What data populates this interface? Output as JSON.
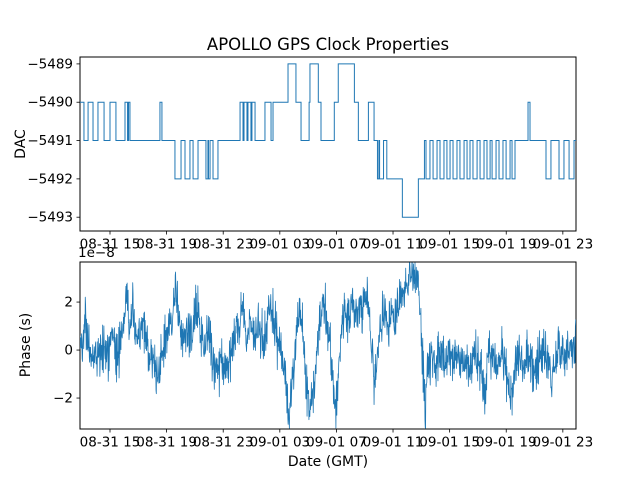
{
  "figure": {
    "title": "APOLLO GPS Clock Properties",
    "xlabel": "Date (GMT)",
    "background": "#ffffff",
    "line_color": "#1f77b4",
    "spine_color": "#000000"
  },
  "chart_data": [
    {
      "type": "step",
      "name": "dac-subplot",
      "title": "APOLLO GPS Clock Properties",
      "ylabel": "DAC",
      "grid": false,
      "legend": "none",
      "xlim_hours": [
        12.88,
        47.93
      ],
      "ylim": [
        -5493.36,
        -5488.82
      ],
      "yticks": [
        -5489,
        -5490,
        -5491,
        -5492,
        -5493
      ],
      "ytick_labels": [
        "−5489",
        "−5490",
        "−5491",
        "−5492",
        "−5493"
      ],
      "xtick_hours": [
        15,
        19,
        23,
        27,
        31,
        35,
        39,
        43,
        47
      ],
      "xtick_labels": [
        "08-31 15",
        "08-31 19",
        "08-31 23",
        "09-01 03",
        "09-01 07",
        "09-01 11",
        "09-01 15",
        "09-01 19",
        "09-01 23"
      ],
      "steps": [
        [
          12.88,
          -5490
        ],
        [
          13.16,
          -5491
        ],
        [
          13.45,
          -5490
        ],
        [
          13.8,
          -5491
        ],
        [
          14.15,
          -5490
        ],
        [
          14.58,
          -5491
        ],
        [
          15.0,
          -5490
        ],
        [
          15.42,
          -5491
        ],
        [
          16.06,
          -5490
        ],
        [
          16.24,
          -5491
        ],
        [
          16.31,
          -5490
        ],
        [
          16.41,
          -5491
        ],
        [
          18.53,
          -5490
        ],
        [
          18.67,
          -5491
        ],
        [
          19.59,
          -5492
        ],
        [
          20.02,
          -5491
        ],
        [
          20.3,
          -5492
        ],
        [
          20.65,
          -5491
        ],
        [
          20.87,
          -5492
        ],
        [
          21.22,
          -5491
        ],
        [
          21.78,
          -5492
        ],
        [
          21.92,
          -5491
        ],
        [
          21.96,
          -5492
        ],
        [
          22.07,
          -5491
        ],
        [
          22.28,
          -5492
        ],
        [
          22.63,
          -5491
        ],
        [
          24.19,
          -5490
        ],
        [
          24.4,
          -5491
        ],
        [
          24.47,
          -5490
        ],
        [
          24.68,
          -5491
        ],
        [
          24.75,
          -5490
        ],
        [
          24.96,
          -5491
        ],
        [
          25.03,
          -5490
        ],
        [
          25.25,
          -5491
        ],
        [
          25.95,
          -5490
        ],
        [
          26.38,
          -5491
        ],
        [
          26.52,
          -5490
        ],
        [
          27.58,
          -5489
        ],
        [
          28.14,
          -5490
        ],
        [
          28.5,
          -5491
        ],
        [
          29.07,
          -5490
        ],
        [
          29.13,
          -5489
        ],
        [
          29.72,
          -5490
        ],
        [
          29.91,
          -5491
        ],
        [
          30.85,
          -5490
        ],
        [
          31.13,
          -5489
        ],
        [
          32.27,
          -5490
        ],
        [
          32.55,
          -5491
        ],
        [
          33.26,
          -5490
        ],
        [
          33.66,
          -5491
        ],
        [
          33.9,
          -5492
        ],
        [
          34.0,
          -5491
        ],
        [
          34.05,
          -5492
        ],
        [
          34.33,
          -5491
        ],
        [
          34.56,
          -5492
        ],
        [
          35.66,
          -5493
        ],
        [
          36.79,
          -5492
        ],
        [
          37.22,
          -5491
        ],
        [
          37.33,
          -5492
        ],
        [
          37.61,
          -5491
        ],
        [
          37.83,
          -5492
        ],
        [
          38.11,
          -5491
        ],
        [
          38.32,
          -5492
        ],
        [
          38.6,
          -5491
        ],
        [
          38.81,
          -5492
        ],
        [
          39.03,
          -5491
        ],
        [
          39.24,
          -5492
        ],
        [
          39.52,
          -5491
        ],
        [
          39.73,
          -5492
        ],
        [
          40.02,
          -5491
        ],
        [
          40.23,
          -5492
        ],
        [
          40.44,
          -5491
        ],
        [
          40.65,
          -5492
        ],
        [
          40.94,
          -5491
        ],
        [
          41.15,
          -5492
        ],
        [
          41.43,
          -5491
        ],
        [
          41.64,
          -5492
        ],
        [
          41.86,
          -5491
        ],
        [
          42.0,
          -5492
        ],
        [
          42.28,
          -5491
        ],
        [
          42.49,
          -5492
        ],
        [
          42.77,
          -5491
        ],
        [
          42.99,
          -5492
        ],
        [
          43.27,
          -5491
        ],
        [
          43.41,
          -5492
        ],
        [
          43.62,
          -5491
        ],
        [
          44.54,
          -5490
        ],
        [
          44.68,
          -5491
        ],
        [
          45.81,
          -5492
        ],
        [
          46.16,
          -5491
        ],
        [
          46.73,
          -5492
        ],
        [
          47.08,
          -5491
        ],
        [
          47.44,
          -5492
        ],
        [
          47.79,
          -5491
        ]
      ]
    },
    {
      "type": "line",
      "name": "phase-subplot",
      "ylabel": "Phase (s)",
      "offset_text": "1e−8",
      "unit_scale": "1e-8",
      "grid": false,
      "legend": "none",
      "xlim_hours": [
        12.88,
        47.93
      ],
      "ylim": [
        -3.29,
        3.67
      ],
      "yticks": [
        -2,
        0,
        2
      ],
      "ytick_labels": [
        "−2",
        "0",
        "2"
      ],
      "xtick_hours": [
        15,
        19,
        23,
        27,
        31,
        35,
        39,
        43,
        47
      ],
      "xtick_labels": [
        "08-31 15",
        "08-31 19",
        "08-31 23",
        "09-01 03",
        "09-01 07",
        "09-01 11",
        "09-01 15",
        "09-01 19",
        "09-01 23"
      ],
      "noise_std": 0.5,
      "n_points": 1600,
      "trend": [
        [
          12.9,
          0.2
        ],
        [
          13.1,
          0.6
        ],
        [
          13.25,
          1.7
        ],
        [
          13.4,
          0.2
        ],
        [
          13.7,
          -0.4
        ],
        [
          14.0,
          0.1
        ],
        [
          14.3,
          -0.5
        ],
        [
          14.6,
          0.3
        ],
        [
          14.9,
          -0.2
        ],
        [
          15.2,
          0.4
        ],
        [
          15.5,
          -0.3
        ],
        [
          15.8,
          0.6
        ],
        [
          16.0,
          1.2
        ],
        [
          16.2,
          2.8
        ],
        [
          16.35,
          0.8
        ],
        [
          16.6,
          1.4
        ],
        [
          16.9,
          0.3
        ],
        [
          17.2,
          1.1
        ],
        [
          17.5,
          0.5
        ],
        [
          17.8,
          -0.2
        ],
        [
          18.1,
          -0.6
        ],
        [
          18.4,
          -1.0
        ],
        [
          18.7,
          -0.2
        ],
        [
          19.0,
          0.6
        ],
        [
          19.3,
          1.0
        ],
        [
          19.55,
          2.0
        ],
        [
          19.7,
          2.7
        ],
        [
          19.85,
          1.0
        ],
        [
          20.1,
          0.4
        ],
        [
          20.4,
          0.9
        ],
        [
          20.7,
          0.2
        ],
        [
          21.0,
          1.5
        ],
        [
          21.2,
          2.0
        ],
        [
          21.4,
          0.8
        ],
        [
          21.7,
          0.2
        ],
        [
          22.0,
          0.7
        ],
        [
          22.3,
          -0.3
        ],
        [
          22.6,
          -0.9
        ],
        [
          22.9,
          -0.5
        ],
        [
          23.2,
          -0.8
        ],
        [
          23.5,
          -0.1
        ],
        [
          23.8,
          0.5
        ],
        [
          24.1,
          1.0
        ],
        [
          24.35,
          1.9
        ],
        [
          24.6,
          0.6
        ],
        [
          24.9,
          1.1
        ],
        [
          25.2,
          0.5
        ],
        [
          25.5,
          1.0
        ],
        [
          25.8,
          0.4
        ],
        [
          26.1,
          1.2
        ],
        [
          26.4,
          2.0
        ],
        [
          26.7,
          0.8
        ],
        [
          27.0,
          0.2
        ],
        [
          27.3,
          -0.8
        ],
        [
          27.6,
          -2.5
        ],
        [
          27.9,
          -1.2
        ],
        [
          28.2,
          0.6
        ],
        [
          28.45,
          1.5
        ],
        [
          28.7,
          0.2
        ],
        [
          28.9,
          -1.5
        ],
        [
          29.1,
          -2.8
        ],
        [
          29.35,
          -1.5
        ],
        [
          29.6,
          -0.3
        ],
        [
          29.85,
          1.2
        ],
        [
          30.05,
          2.3
        ],
        [
          30.3,
          1.2
        ],
        [
          30.55,
          0.2
        ],
        [
          30.8,
          -1.8
        ],
        [
          30.95,
          -2.4
        ],
        [
          31.15,
          -0.8
        ],
        [
          31.35,
          0.9
        ],
        [
          31.6,
          1.8
        ],
        [
          31.85,
          1.2
        ],
        [
          32.1,
          1.9
        ],
        [
          32.35,
          1.3
        ],
        [
          32.6,
          2.0
        ],
        [
          32.85,
          1.4
        ],
        [
          33.1,
          2.4
        ],
        [
          33.3,
          1.5
        ],
        [
          33.5,
          0.2
        ],
        [
          33.65,
          -1.8
        ],
        [
          33.85,
          -0.5
        ],
        [
          34.1,
          0.8
        ],
        [
          34.35,
          1.6
        ],
        [
          34.6,
          1.0
        ],
        [
          34.85,
          1.7
        ],
        [
          35.1,
          1.2
        ],
        [
          35.35,
          1.8
        ],
        [
          35.6,
          2.2
        ],
        [
          35.85,
          2.6
        ],
        [
          36.1,
          3.0
        ],
        [
          36.3,
          3.3
        ],
        [
          36.5,
          2.9
        ],
        [
          36.7,
          3.2
        ],
        [
          36.85,
          2.2
        ],
        [
          37.0,
          0.5
        ],
        [
          37.15,
          -0.9
        ],
        [
          37.3,
          -2.7
        ],
        [
          37.45,
          -0.6
        ],
        [
          37.7,
          -0.2
        ],
        [
          38.0,
          -0.6
        ],
        [
          38.3,
          0.1
        ],
        [
          38.6,
          -0.8
        ],
        [
          38.9,
          -0.2
        ],
        [
          39.2,
          -0.6
        ],
        [
          39.5,
          0.0
        ],
        [
          39.8,
          -0.9
        ],
        [
          40.1,
          -0.3
        ],
        [
          40.4,
          -0.7
        ],
        [
          40.7,
          0.1
        ],
        [
          41.0,
          -0.5
        ],
        [
          41.3,
          -1.0
        ],
        [
          41.5,
          -1.8
        ],
        [
          41.7,
          -0.4
        ],
        [
          42.0,
          -0.2
        ],
        [
          42.3,
          -0.8
        ],
        [
          42.6,
          -0.1
        ],
        [
          42.9,
          -0.6
        ],
        [
          43.2,
          -1.5
        ],
        [
          43.4,
          -2.2
        ],
        [
          43.6,
          -0.8
        ],
        [
          43.9,
          -0.3
        ],
        [
          44.2,
          -0.7
        ],
        [
          44.5,
          -0.1
        ],
        [
          44.8,
          -0.6
        ],
        [
          45.1,
          -1.2
        ],
        [
          45.3,
          -0.4
        ],
        [
          45.6,
          0.2
        ],
        [
          45.9,
          -0.5
        ],
        [
          46.2,
          -1.0
        ],
        [
          46.5,
          -0.3
        ],
        [
          46.8,
          0.3
        ],
        [
          47.1,
          -0.4
        ],
        [
          47.4,
          0.1
        ],
        [
          47.7,
          -0.3
        ],
        [
          47.9,
          0.4
        ]
      ],
      "xlabel": "Date (GMT)"
    }
  ]
}
